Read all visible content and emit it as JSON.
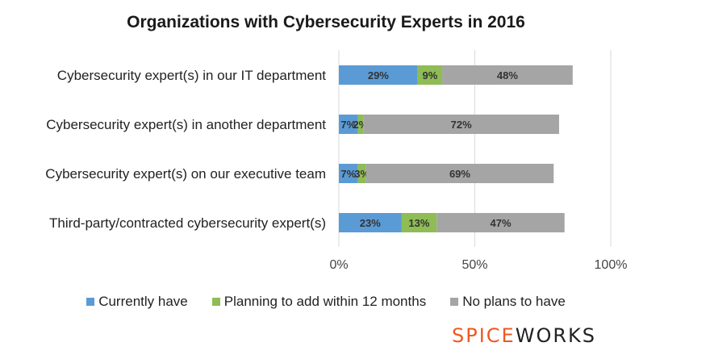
{
  "chart_data": {
    "type": "bar",
    "orientation": "horizontal",
    "stacked": true,
    "title": "Organizations with Cybersecurity Experts in 2016",
    "categories": [
      "Cybersecurity expert(s) in our IT department",
      "Cybersecurity expert(s) in another department",
      "Cybersecurity expert(s) on our executive team",
      "Third-party/contracted cybersecurity expert(s)"
    ],
    "series": [
      {
        "name": "Currently have",
        "color": "#5b9bd5",
        "values": [
          29,
          7,
          7,
          23
        ],
        "labels": [
          "29%",
          "7%",
          "7%",
          "23%"
        ]
      },
      {
        "name": "Planning to add within 12 months",
        "color": "#8fbc55",
        "values": [
          9,
          2,
          3,
          13
        ],
        "labels": [
          "9%",
          "2%",
          "3%",
          "13%"
        ]
      },
      {
        "name": "No plans to have",
        "color": "#a5a5a5",
        "values": [
          48,
          72,
          69,
          47
        ],
        "labels": [
          "48%",
          "72%",
          "69%",
          "47%"
        ]
      }
    ],
    "xlim": [
      0,
      100
    ],
    "xticks": [
      0,
      50,
      100
    ],
    "xtick_labels": [
      "0%",
      "50%",
      "100%"
    ],
    "grid": true,
    "legend_position": "bottom"
  },
  "brand": {
    "part1": "SPICE",
    "part2": "WORKS"
  }
}
